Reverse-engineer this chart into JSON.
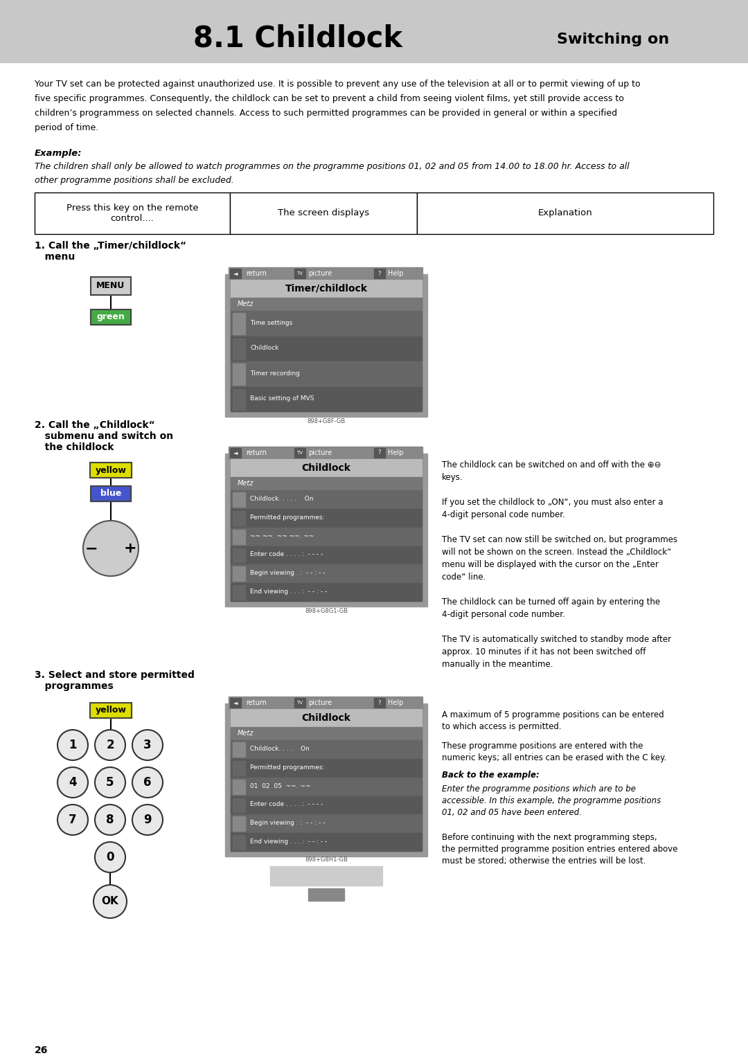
{
  "title_left": "8.1 Childlock",
  "title_right": "Switching on",
  "header_bg": "#c8c8c8",
  "page_bg": "#ffffff",
  "page_number": "26",
  "body_lines": [
    "Your TV set can be protected against unauthorized use. It is possible to prevent any use of the television at all or to permit viewing of up to",
    "five specific programmes. Consequently, the childlock can be set to prevent a child from seeing violent films, yet still provide access to",
    "children’s programmess on selected channels. Access to such permitted programmes can be provided in general or within a specified",
    "period of time."
  ],
  "example_label": "Example:",
  "example_lines": [
    "The children shall only be allowed to watch programmes on the programme positions 01, 02 and 05 from 14.00 to 18.00 hr. Access to all",
    "other programme positions shall be excluded."
  ],
  "col1_header": "Press this key on the remote\ncontrol....",
  "col2_header": "The screen displays",
  "col3_header": "Explanation",
  "step1_label": "1. Call the „Timer/childlock“\n   menu",
  "step2_label": "2. Call the „Childlock“\n   submenu and switch on\n   the childlock",
  "step3_label": "3. Select and store permitted\n   programmes",
  "screen1_title": "Timer/childlock",
  "screen1_items": [
    "Time settings",
    "Childlock",
    "Timer recording",
    "Basic setting of MVS"
  ],
  "screen2_title": "Childlock",
  "screen2_items": [
    "Childlock. . . . .    On",
    "Permitted programmes:",
    "~~ ~~. ~~ ~~. ~~",
    "Enter code . . . . :  - - - -",
    "Begin viewing . :  - - : - -",
    "End viewing . . . :  - - : - -"
  ],
  "screen3_title": "Childlock",
  "screen3_items": [
    "Childlock. . . .    On",
    "Permitted programmes:",
    "01  02  05  ~~. ~~",
    "Enter code . . . . :  - - - -",
    "Begin viewing . :  - - : - -",
    "End viewing . . . :  - - : - -"
  ],
  "exp2_lines": [
    "The childlock can be switched on and off with the ⊕⊖",
    "keys.",
    "",
    "If you set the childlock to „ON“, you must also enter a",
    "4-digit personal code number.",
    "",
    "The TV set can now still be switched on, but programmes",
    "will not be shown on the screen. Instead the „Childlock“",
    "menu will be displayed with the cursor on the „Enter",
    "code“ line.",
    "",
    "The childlock can be turned off again by entering the",
    "4-digit personal code number.",
    "",
    "The TV is automatically switched to standby mode after",
    "approx. 10 minutes if it has not been switched off",
    "manually in the meantime."
  ],
  "exp3_lines_1": [
    "A maximum of 5 programme positions can be entered",
    "to which access is permitted."
  ],
  "exp3_lines_2": [
    "These programme positions are entered with the",
    "numeric keys; all entries can be erased with the C key."
  ],
  "exp3_bold": "Back to the example:",
  "exp3_lines_3": [
    "Enter the programme positions which are to be",
    "accessible. In this example, the programme positions",
    "01, 02 and 05 have been entered."
  ],
  "exp3_lines_4": [
    "Before continuing with the next programming steps,",
    "the permitted programme position entries entered above",
    "must be stored; otherwise the entries will be lost."
  ]
}
